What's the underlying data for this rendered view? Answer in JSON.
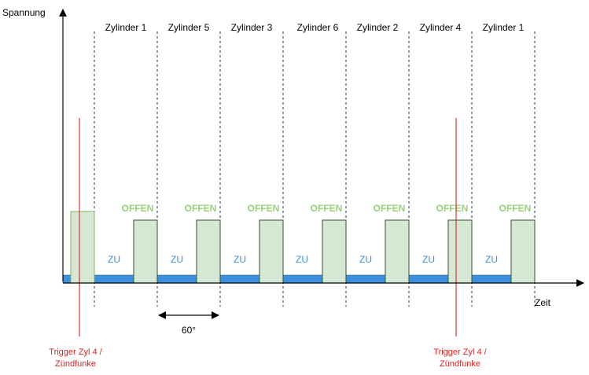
{
  "axes": {
    "y_label": "Spannung",
    "x_label": "Zeit"
  },
  "cylinders": [
    "Zylinder 1",
    "Zylinder 5",
    "Zylinder 3",
    "Zylinder 6",
    "Zylinder 2",
    "Zylinder 4",
    "Zylinder 1"
  ],
  "state_closed": "ZU",
  "state_open": "OFFEN",
  "angle_label": "60°",
  "triggers": [
    {
      "line1": "Trigger Zyl 4 /",
      "line2": "Zündfunke"
    },
    {
      "line1": "Trigger Zyl 4 /",
      "line2": "Zündfunke"
    }
  ],
  "colors": {
    "axis": "#000000",
    "closed_fill": "#3d8fe0",
    "open_fill": "#d5e8d4",
    "open_stroke": "#2b5a20",
    "open_text": "#97d077",
    "trigger": "#dd2222"
  }
}
